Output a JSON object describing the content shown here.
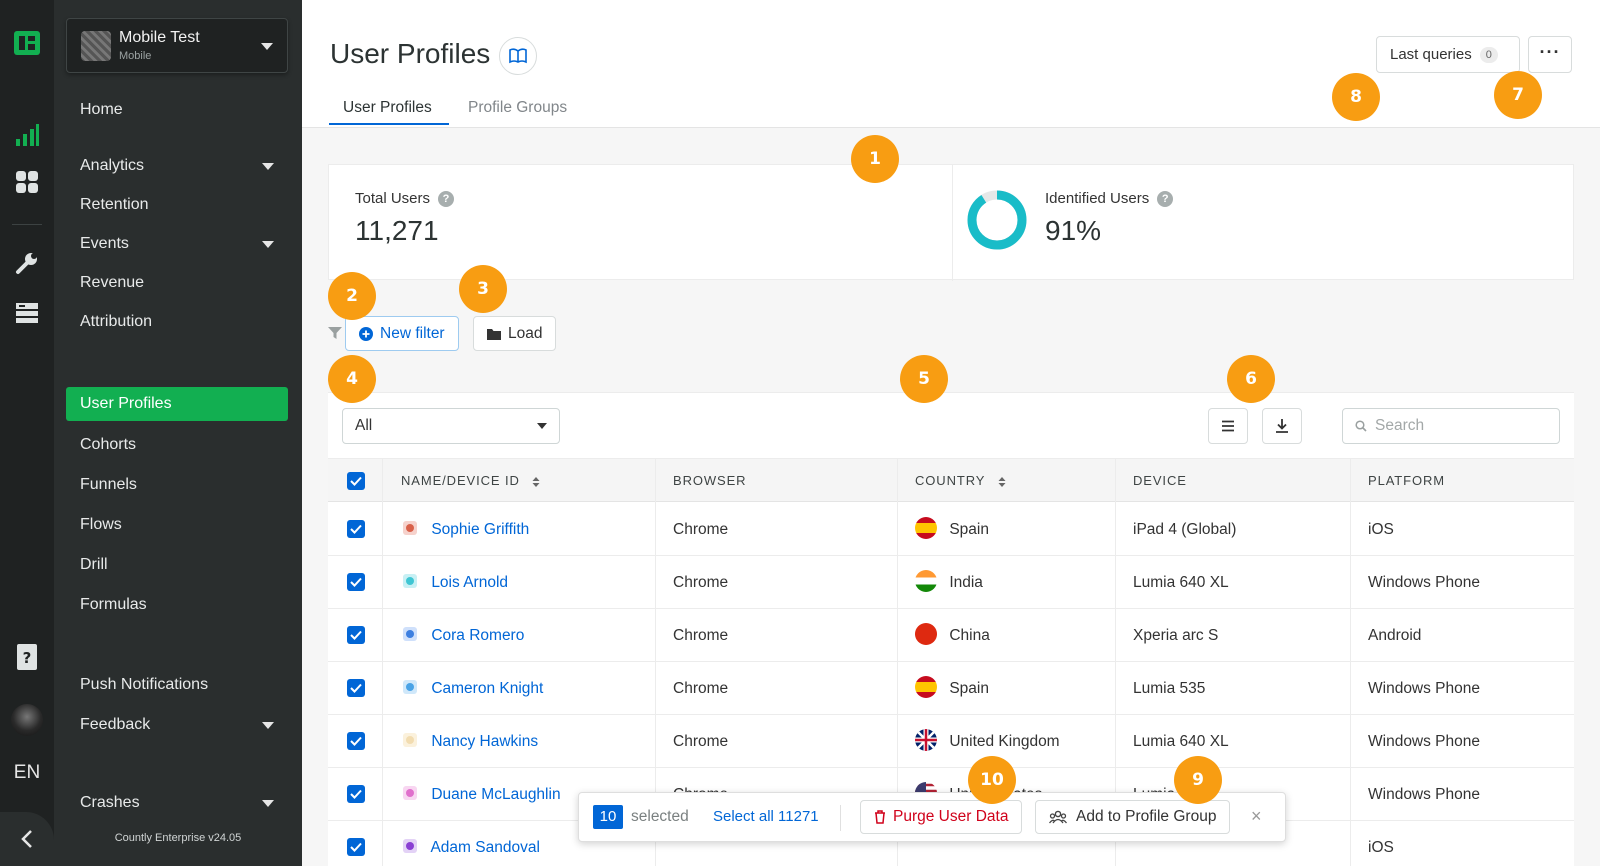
{
  "app": {
    "name": "Mobile Test",
    "type": "Mobile",
    "version": "Countly Enterprise v24.05"
  },
  "rail": {
    "language": "EN",
    "icons": [
      "countly-logo-icon",
      "analytics-bars-icon",
      "dashboard-grid-icon",
      "wrench-icon",
      "database-icon",
      "help-doc-icon",
      "user-avatar",
      "collapse-chevron-icon"
    ]
  },
  "sidebar": {
    "items": [
      {
        "label": "Home"
      },
      {
        "label": "Analytics"
      },
      {
        "label": "Retention"
      },
      {
        "label": "Events"
      },
      {
        "label": "Revenue"
      },
      {
        "label": "Attribution"
      },
      {
        "label": "User Profiles"
      },
      {
        "label": "Cohorts"
      },
      {
        "label": "Funnels"
      },
      {
        "label": "Flows"
      },
      {
        "label": "Drill"
      },
      {
        "label": "Formulas"
      },
      {
        "label": "Push Notifications"
      },
      {
        "label": "Feedback"
      },
      {
        "label": "Crashes"
      }
    ]
  },
  "header": {
    "title": "User Profiles",
    "tabs": [
      {
        "label": "User Profiles"
      },
      {
        "label": "Profile Groups"
      }
    ],
    "last_queries_label": "Last queries",
    "last_queries_count": "0",
    "more_label": "···"
  },
  "stats": {
    "total_users_label": "Total Users",
    "total_users_value": "11,271",
    "identified_users_label": "Identified Users",
    "identified_users_value": "91%",
    "identified_fraction": 0.91,
    "help_glyph": "?"
  },
  "filters": {
    "new_filter_label": "New filter",
    "load_label": "Load"
  },
  "table": {
    "segment_selected": "All",
    "search_placeholder": "Search",
    "columns": [
      "NAME/DEVICE ID",
      "BROWSER",
      "COUNTRY",
      "DEVICE",
      "PLATFORM"
    ],
    "rows": [
      {
        "name": "Sophie Griffith",
        "browser": "Chrome",
        "country": "Spain",
        "device": "iPad 4 (Global)",
        "platform": "iOS"
      },
      {
        "name": "Lois Arnold",
        "browser": "Chrome",
        "country": "India",
        "device": "Lumia 640 XL",
        "platform": "Windows Phone"
      },
      {
        "name": "Cora Romero",
        "browser": "Chrome",
        "country": "China",
        "device": "Xperia arc S",
        "platform": "Android"
      },
      {
        "name": "Cameron Knight",
        "browser": "Chrome",
        "country": "Spain",
        "device": "Lumia 535",
        "platform": "Windows Phone"
      },
      {
        "name": "Nancy Hawkins",
        "browser": "Chrome",
        "country": "United Kingdom",
        "device": "Lumia 640 XL",
        "platform": "Windows Phone"
      },
      {
        "name": "Duane McLaughlin",
        "browser": "Chrome",
        "country": "United States",
        "device": "Lumia",
        "platform": "Windows Phone"
      },
      {
        "name": "Adam Sandoval",
        "browser": "",
        "country": "",
        "device": "",
        "platform": "iOS"
      }
    ]
  },
  "bulk": {
    "selected_count": "10",
    "selected_label": "selected",
    "select_all_label": "Select all 11271",
    "purge_label": "Purge User Data",
    "add_group_label": "Add to Profile Group",
    "close_glyph": "×"
  },
  "annotations": [
    "1",
    "2",
    "3",
    "4",
    "5",
    "6",
    "7",
    "8",
    "9",
    "10"
  ],
  "colors": {
    "accent": "#0166d6",
    "active_nav": "#12af51",
    "badge": "#f89d12",
    "donut": "#19bcc8",
    "purge": "#d0021b"
  }
}
